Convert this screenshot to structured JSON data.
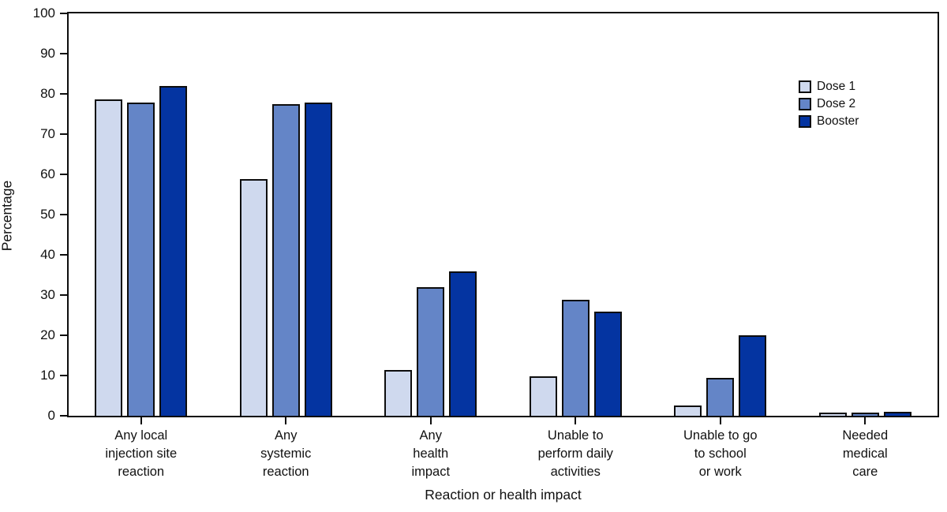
{
  "chart_data": {
    "type": "bar",
    "title": "",
    "xlabel": "Reaction or health impact",
    "ylabel": "Percentage",
    "ylim": [
      0,
      100
    ],
    "yticks": [
      0,
      10,
      20,
      30,
      40,
      50,
      60,
      70,
      80,
      90,
      100
    ],
    "grid": false,
    "legend_position": "upper right",
    "bar_edge_color": "#0d0d0d",
    "categories": [
      [
        "Any local",
        "injection site",
        "reaction"
      ],
      [
        "Any",
        "systemic",
        "reaction"
      ],
      [
        "Any",
        "health",
        "impact"
      ],
      [
        "Unable to",
        "perform daily",
        "activities"
      ],
      [
        "Unable to go",
        "to school",
        "or work"
      ],
      [
        "Needed",
        "medical",
        "care"
      ]
    ],
    "series": [
      {
        "name": "Dose 1",
        "color": "#cfd9ee",
        "values": [
          78.7,
          58.8,
          11.4,
          9.9,
          2.5,
          0.7
        ]
      },
      {
        "name": "Dose 2",
        "color": "#6485c7",
        "values": [
          77.8,
          77.4,
          32.0,
          28.9,
          9.5,
          0.7
        ]
      },
      {
        "name": "Booster",
        "color": "#0434a1",
        "values": [
          82.0,
          77.9,
          35.8,
          25.8,
          20.1,
          1.0
        ]
      }
    ]
  }
}
